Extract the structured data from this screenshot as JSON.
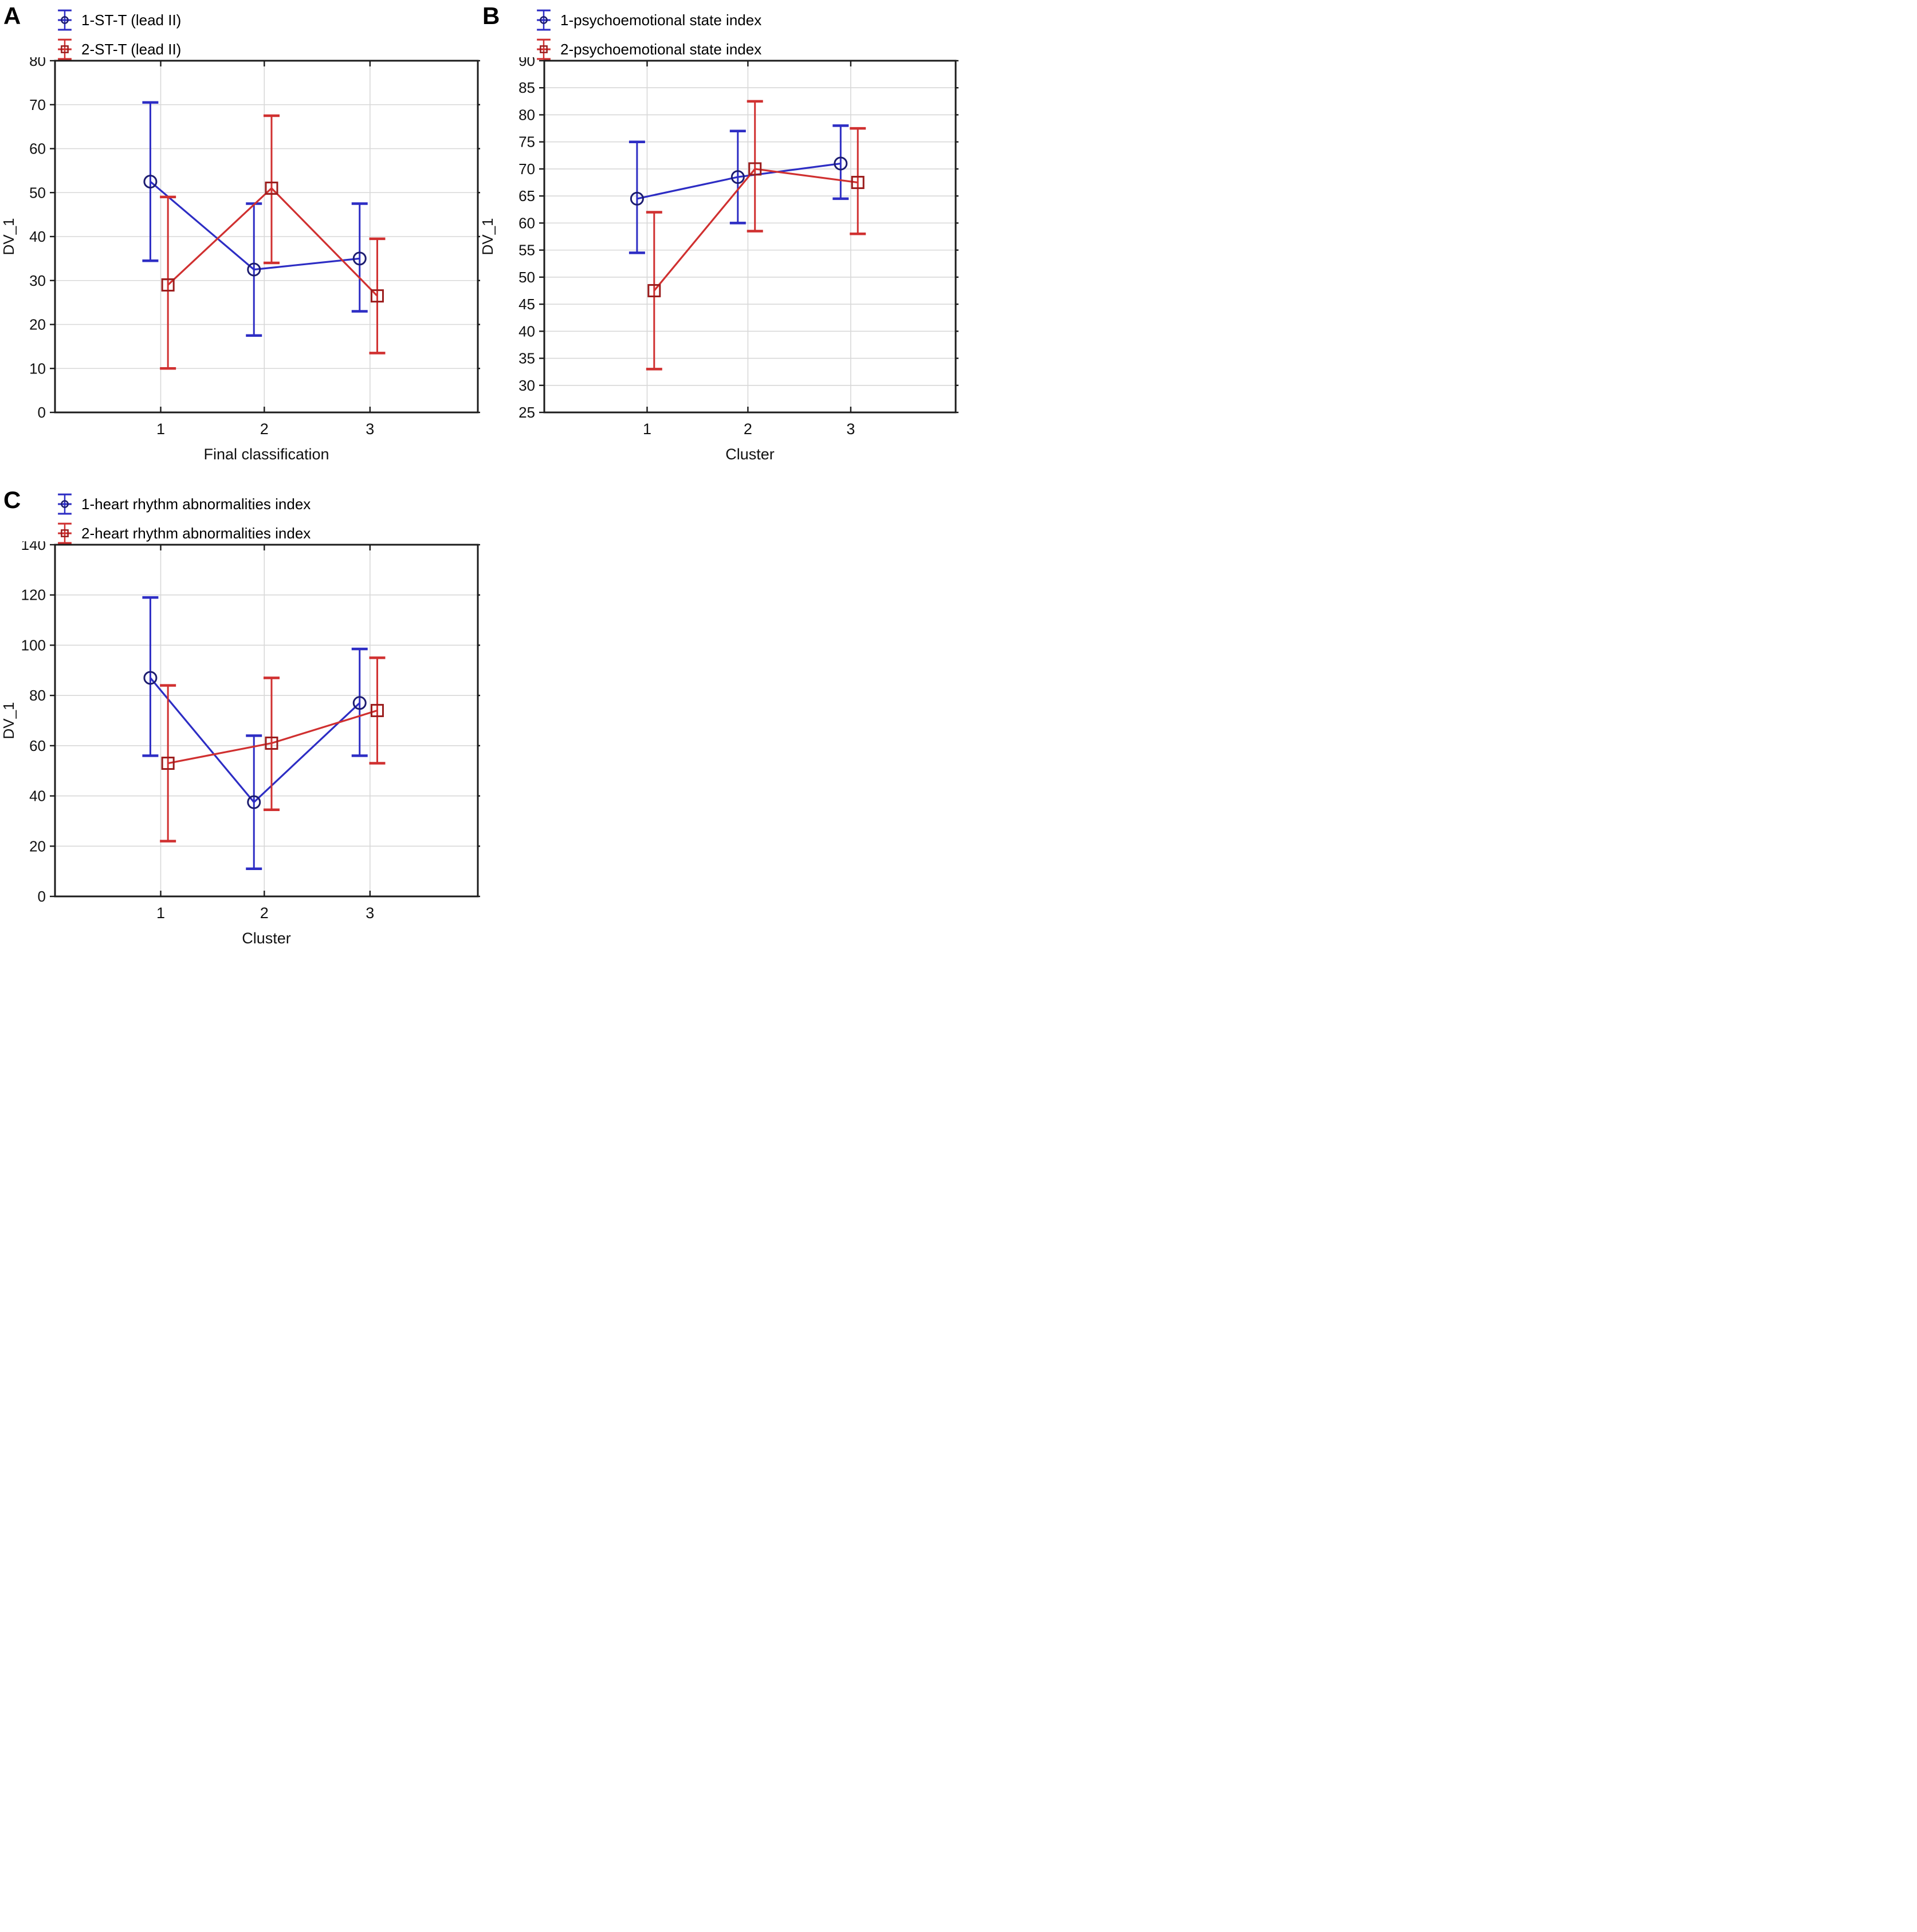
{
  "figure": {
    "background": "#ffffff",
    "grid_color": "#d8d8d8",
    "frame_color": "#1b1b1b",
    "text_color": "#111111"
  },
  "chart_data": [
    {
      "id": "A",
      "label": "A",
      "type": "line",
      "x_categories": [
        "1",
        "2",
        "3"
      ],
      "xlabel": "Final classification",
      "ylabel": "DV_1",
      "ylim": [
        0,
        80
      ],
      "ytick_step": 10,
      "grid": true,
      "legend_position": "top-left",
      "series": [
        {
          "name": "1-ST-T (lead II)",
          "color": "#2d2dc4",
          "marker": "circle",
          "marker_stroke": "#1c1c70",
          "values": [
            52.5,
            32.5,
            35
          ],
          "err_low": [
            34.5,
            17.5,
            23
          ],
          "err_high": [
            70.5,
            47.5,
            47.5
          ]
        },
        {
          "name": "2-ST-T (lead II)",
          "color": "#d03030",
          "marker": "square",
          "marker_stroke": "#9b1c1c",
          "values": [
            29,
            51,
            26.5
          ],
          "err_low": [
            10,
            34,
            13.5
          ],
          "err_high": [
            49,
            67.5,
            39.5
          ]
        }
      ]
    },
    {
      "id": "B",
      "label": "B",
      "type": "line",
      "x_categories": [
        "1",
        "2",
        "3"
      ],
      "xlabel": "Cluster",
      "ylabel": "DV_1",
      "ylim": [
        25,
        90
      ],
      "ytick_step": 5,
      "grid": true,
      "legend_position": "top-left",
      "series": [
        {
          "name": "1-psychoemotional state index",
          "color": "#2d2dc4",
          "marker": "circle",
          "marker_stroke": "#1c1c70",
          "values": [
            64.5,
            68.5,
            71
          ],
          "err_low": [
            54.5,
            60,
            64.5
          ],
          "err_high": [
            75,
            77,
            78
          ]
        },
        {
          "name": "2-psychoemotional state index",
          "color": "#d03030",
          "marker": "square",
          "marker_stroke": "#9b1c1c",
          "values": [
            47.5,
            70,
            67.5
          ],
          "err_low": [
            33,
            58.5,
            58
          ],
          "err_high": [
            62,
            82.5,
            77.5
          ]
        }
      ]
    },
    {
      "id": "C",
      "label": "C",
      "type": "line",
      "x_categories": [
        "1",
        "2",
        "3"
      ],
      "xlabel": "Cluster",
      "ylabel": "DV_1",
      "ylim": [
        0,
        140
      ],
      "ytick_step": 20,
      "grid": true,
      "legend_position": "top-left",
      "series": [
        {
          "name": "1-heart rhythm abnormalities index",
          "color": "#2d2dc4",
          "marker": "circle",
          "marker_stroke": "#1c1c70",
          "values": [
            87,
            37.5,
            77
          ],
          "err_low": [
            56,
            11,
            56
          ],
          "err_high": [
            119,
            64,
            98.5
          ]
        },
        {
          "name": "2-heart rhythm abnormalities index",
          "color": "#d03030",
          "marker": "square",
          "marker_stroke": "#9b1c1c",
          "values": [
            53,
            61,
            74
          ],
          "err_low": [
            22,
            34.5,
            53
          ],
          "err_high": [
            84,
            87,
            95
          ]
        }
      ]
    }
  ]
}
